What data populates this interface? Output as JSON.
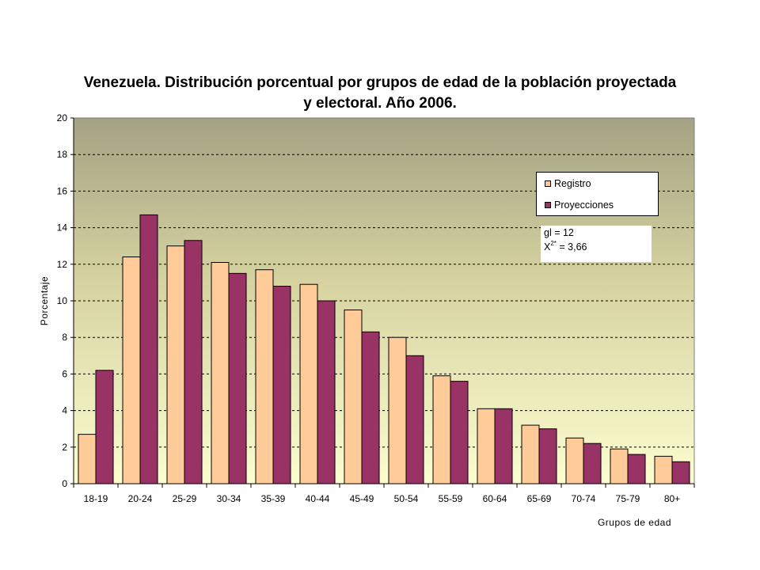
{
  "chart_data": {
    "type": "bar",
    "title_lines": [
      "Venezuela. Distribución porcentual por grupos de edad de la población proyectada",
      "y electoral. Año 2006."
    ],
    "xlabel": "Grupos de edad",
    "ylabel": "Porcentaje",
    "ylim": [
      0,
      20
    ],
    "yticks": [
      0,
      2,
      4,
      6,
      8,
      10,
      12,
      14,
      16,
      18,
      20
    ],
    "grid": true,
    "legend_position": "top-right",
    "categories": [
      "18-19",
      "20-24",
      "25-29",
      "30-34",
      "35-39",
      "40-44",
      "45-49",
      "50-54",
      "55-59",
      "60-64",
      "65-69",
      "70-74",
      "75-79",
      "80+"
    ],
    "series": [
      {
        "name": "Registro",
        "color": "#FFCC99",
        "values": [
          2.7,
          12.4,
          13.0,
          12.1,
          11.7,
          10.9,
          9.5,
          8.0,
          5.9,
          4.1,
          3.2,
          2.5,
          1.9,
          1.5
        ]
      },
      {
        "name": "Proyecciones",
        "color": "#993366",
        "values": [
          6.2,
          14.7,
          13.3,
          11.5,
          10.8,
          10.0,
          8.3,
          7.0,
          5.6,
          4.1,
          3.0,
          2.2,
          1.6,
          1.2
        ]
      }
    ],
    "annotation": {
      "line1": "gl = 12",
      "line2_prefix": "X",
      "line2_sup": "2*",
      "line2_suffix": " = 3,66"
    }
  }
}
